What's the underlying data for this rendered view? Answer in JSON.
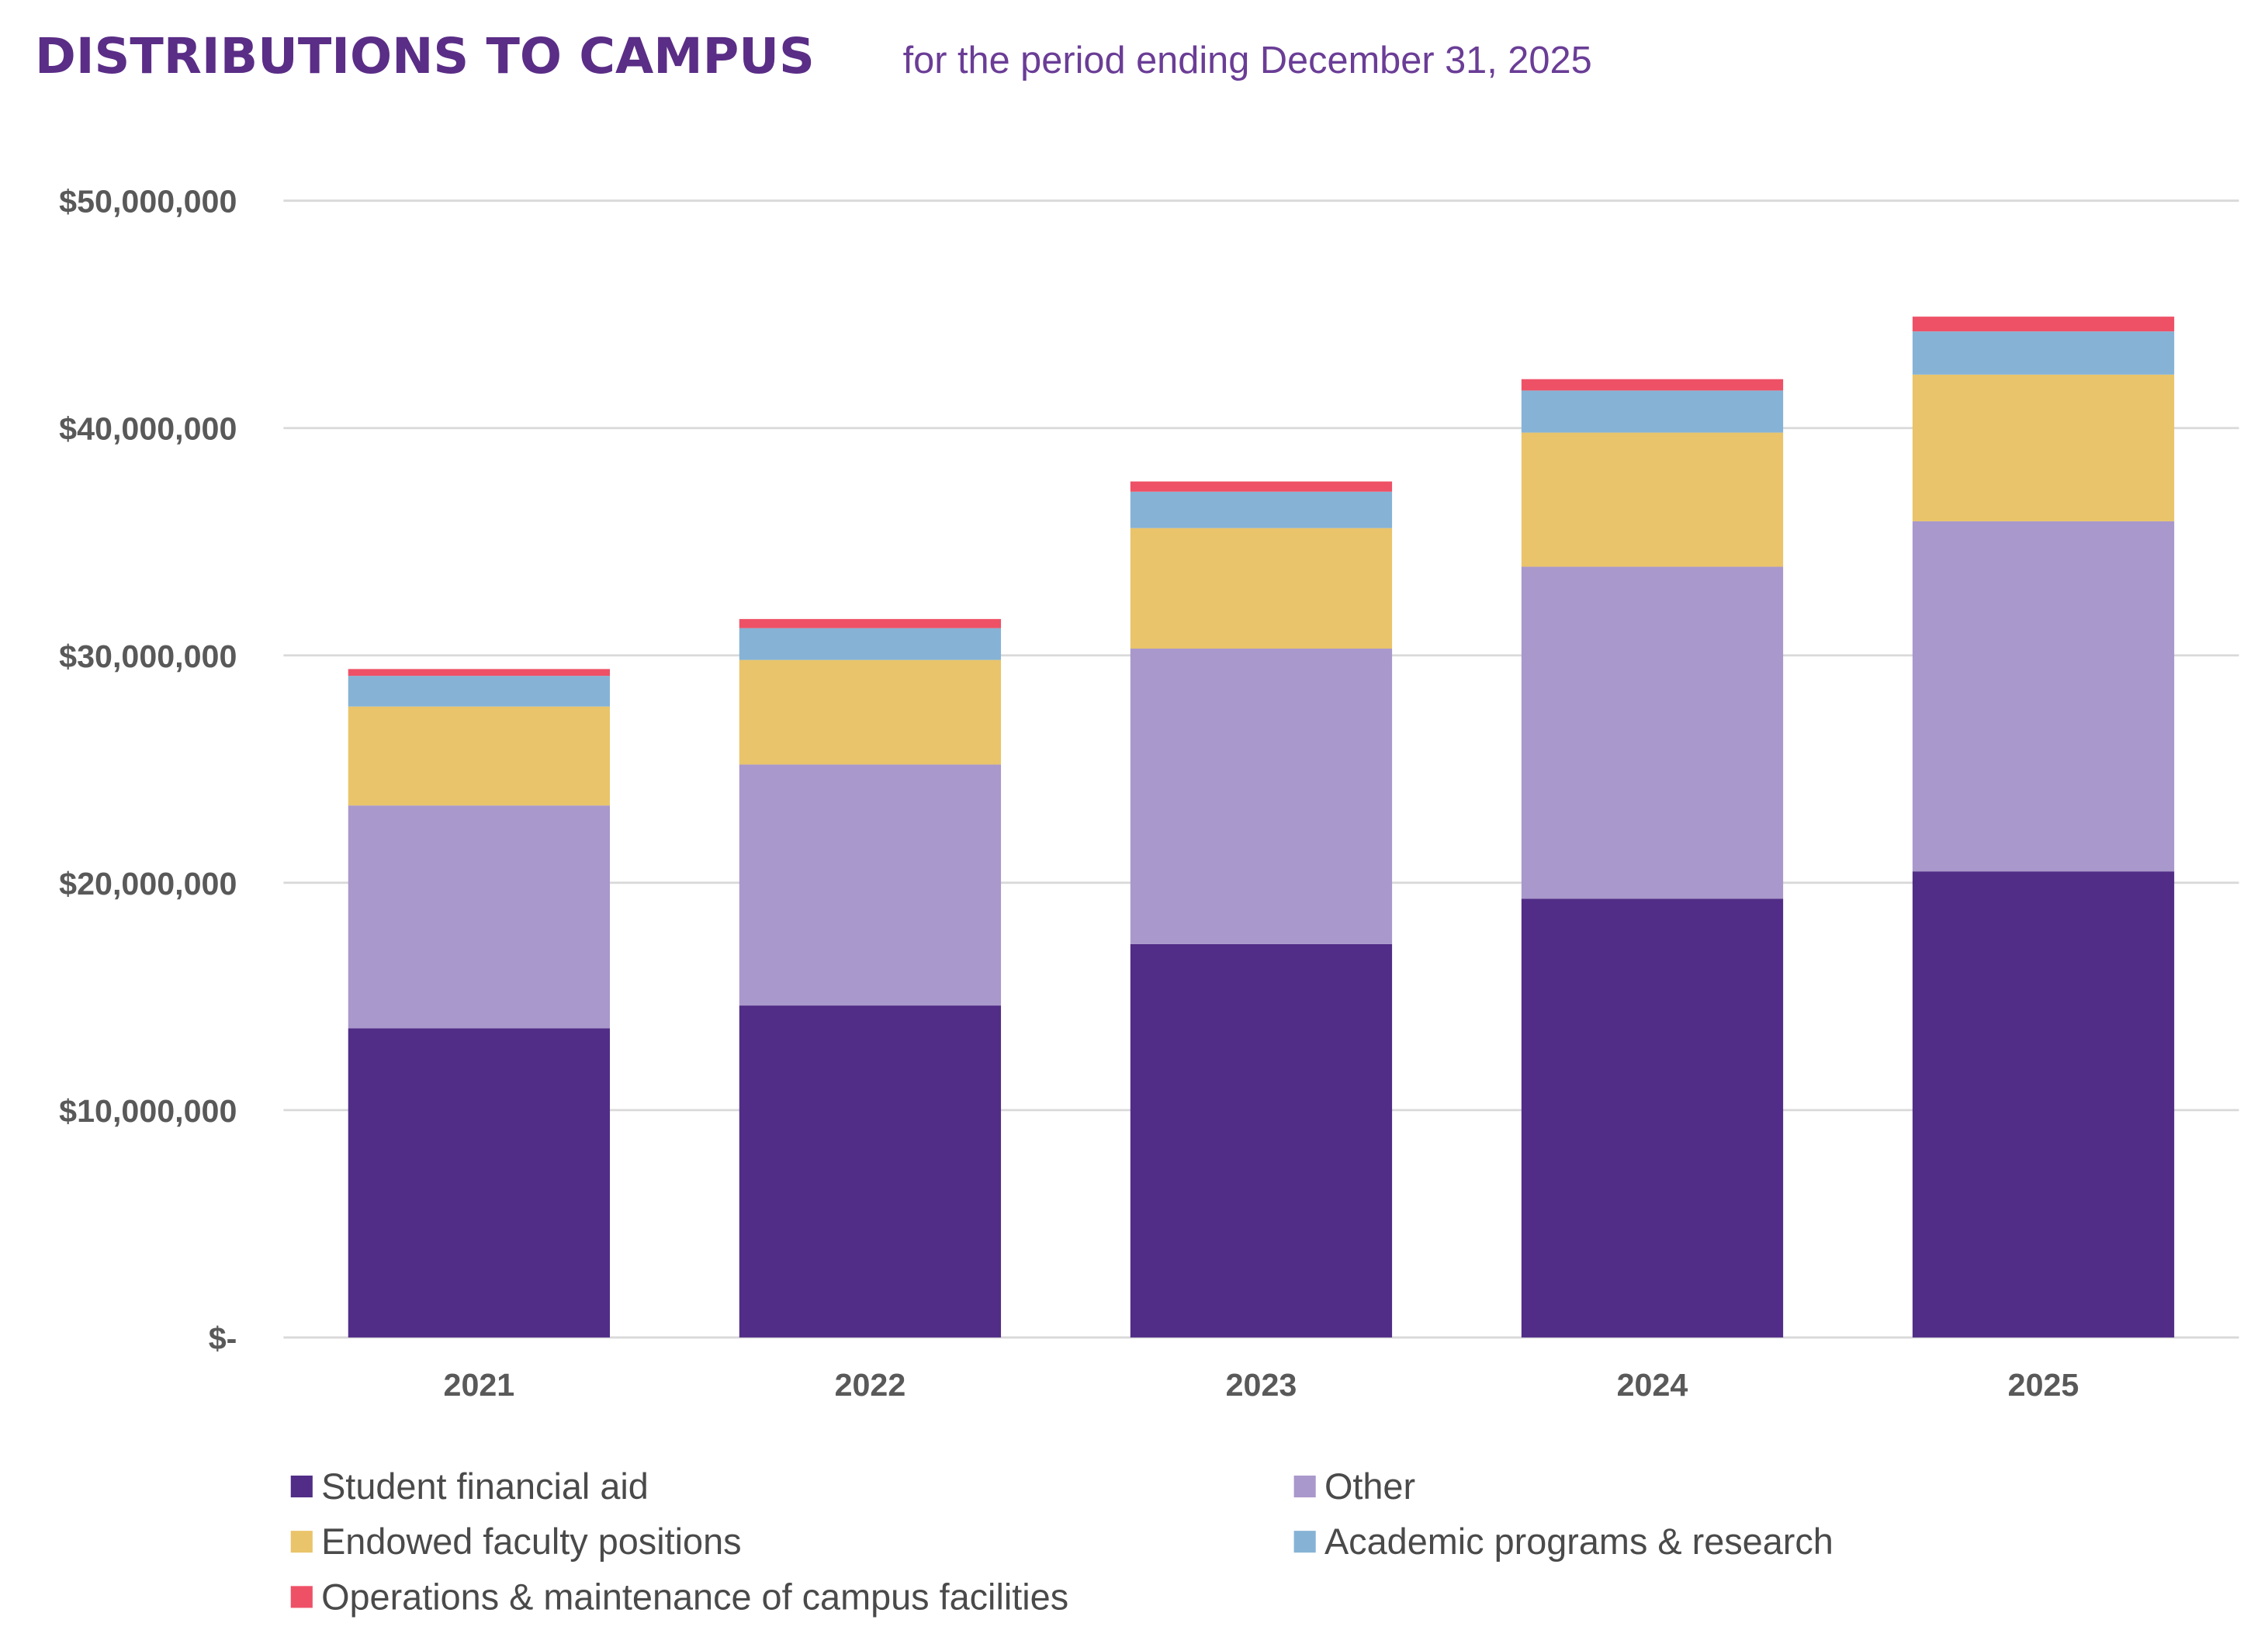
{
  "chart_data": {
    "type": "bar",
    "stacked": true,
    "title": "DISTRIBUTIONS TO CAMPUS",
    "subtitle": "for the period ending December 31, 2025",
    "xlabel": "",
    "ylabel": "",
    "categories": [
      "2021",
      "2022",
      "2023",
      "2024",
      "2025"
    ],
    "ylim": [
      0,
      50000000
    ],
    "yticks": [
      0,
      10000000,
      20000000,
      30000000,
      40000000,
      50000000
    ],
    "ytick_labels": [
      "$-",
      "$10,000,000",
      "$20,000,000",
      "$30,000,000",
      "$40,000,000",
      "$50,000,000"
    ],
    "grid": true,
    "legend_position": "bottom",
    "series": [
      {
        "name": "Student financial aid",
        "color": "#512d87",
        "values": [
          13600000,
          14600000,
          17300000,
          19300000,
          20500000
        ]
      },
      {
        "name": "Other",
        "color": "#a998cb",
        "values": [
          9800000,
          10600000,
          13000000,
          14600000,
          15400000
        ]
      },
      {
        "name": "Endowed faculty positions",
        "color": "#e9c46a",
        "values": [
          4350000,
          4600000,
          5300000,
          5900000,
          6450000
        ]
      },
      {
        "name": "Academic programs & research",
        "color": "#86b3d5",
        "values": [
          1350000,
          1400000,
          1600000,
          1850000,
          1900000
        ]
      },
      {
        "name": "Operations & maintenance of campus facilities",
        "color": "#ee5166",
        "values": [
          300000,
          400000,
          450000,
          500000,
          650000
        ]
      }
    ]
  }
}
